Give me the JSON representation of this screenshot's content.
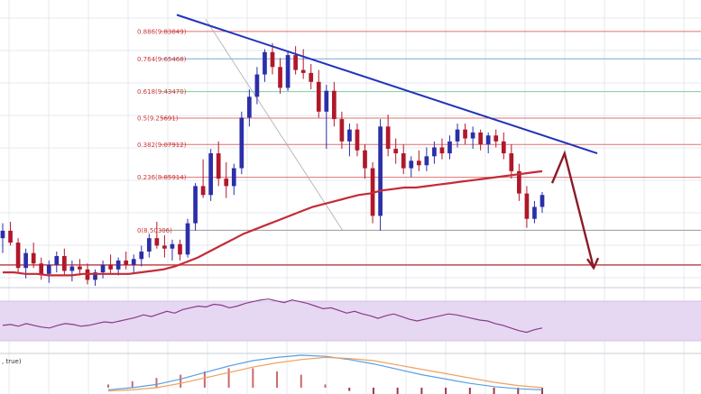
{
  "chart_data": {
    "type": "candlestick",
    "price_range": [
      8.13,
      10.05
    ],
    "fib_levels": [
      {
        "ratio": "0.886",
        "price": 9.83849,
        "label": "0.886(9.83849)",
        "color": "#e07070"
      },
      {
        "ratio": "0.764",
        "price": 9.65468,
        "label": "0.764(9.65468)",
        "color": "#7aa7d6"
      },
      {
        "ratio": "0.618",
        "price": 9.4347,
        "label": "0.618(9.43470)",
        "color": "#7ccf9f"
      },
      {
        "ratio": "0.5",
        "price": 9.25691,
        "label": "0.5(9.25691)",
        "color": "#e07070"
      },
      {
        "ratio": "0.382",
        "price": 9.07912,
        "label": "0.382(9.07912)",
        "color": "#e07070"
      },
      {
        "ratio": "0.236",
        "price": 8.85914,
        "label": "0.236(8.85914)",
        "color": "#e07070"
      },
      {
        "ratio": "0",
        "price": 8.50306,
        "label": "0(8.50306)",
        "color": "#999999"
      }
    ],
    "support_price": 8.27,
    "candles": [
      [
        8.45,
        8.55,
        8.35,
        8.5
      ],
      [
        8.5,
        8.56,
        8.4,
        8.42
      ],
      [
        8.42,
        8.45,
        8.22,
        8.25
      ],
      [
        8.25,
        8.38,
        8.18,
        8.35
      ],
      [
        8.35,
        8.42,
        8.25,
        8.28
      ],
      [
        8.28,
        8.32,
        8.17,
        8.21
      ],
      [
        8.21,
        8.3,
        8.15,
        8.27
      ],
      [
        8.27,
        8.36,
        8.22,
        8.33
      ],
      [
        8.33,
        8.38,
        8.2,
        8.23
      ],
      [
        8.23,
        8.3,
        8.16,
        8.26
      ],
      [
        8.26,
        8.31,
        8.2,
        8.24
      ],
      [
        8.24,
        8.28,
        8.14,
        8.17
      ],
      [
        8.17,
        8.24,
        8.13,
        8.22
      ],
      [
        8.22,
        8.3,
        8.18,
        8.27
      ],
      [
        8.27,
        8.34,
        8.21,
        8.24
      ],
      [
        8.24,
        8.32,
        8.2,
        8.3
      ],
      [
        8.3,
        8.36,
        8.24,
        8.27
      ],
      [
        8.27,
        8.34,
        8.22,
        8.31
      ],
      [
        8.31,
        8.4,
        8.26,
        8.36
      ],
      [
        8.36,
        8.48,
        8.32,
        8.45
      ],
      [
        8.45,
        8.56,
        8.38,
        8.4
      ],
      [
        8.4,
        8.47,
        8.32,
        8.38
      ],
      [
        8.38,
        8.44,
        8.3,
        8.41
      ],
      [
        8.41,
        8.44,
        8.3,
        8.34
      ],
      [
        8.34,
        8.58,
        8.32,
        8.55
      ],
      [
        8.55,
        8.82,
        8.5,
        8.8
      ],
      [
        8.8,
        8.98,
        8.72,
        8.74
      ],
      [
        8.74,
        9.05,
        8.7,
        9.02
      ],
      [
        9.02,
        9.1,
        8.8,
        8.85
      ],
      [
        8.85,
        8.96,
        8.72,
        8.8
      ],
      [
        8.8,
        8.95,
        8.74,
        8.92
      ],
      [
        8.92,
        9.3,
        8.88,
        9.26
      ],
      [
        9.26,
        9.45,
        9.2,
        9.4
      ],
      [
        9.4,
        9.6,
        9.35,
        9.55
      ],
      [
        9.55,
        9.72,
        9.5,
        9.7
      ],
      [
        9.7,
        9.76,
        9.55,
        9.6
      ],
      [
        9.6,
        9.66,
        9.42,
        9.46
      ],
      [
        9.46,
        9.7,
        9.44,
        9.68
      ],
      [
        9.68,
        9.74,
        9.55,
        9.58
      ],
      [
        9.58,
        9.72,
        9.52,
        9.56
      ],
      [
        9.56,
        9.62,
        9.45,
        9.5
      ],
      [
        9.5,
        9.58,
        9.26,
        9.3
      ],
      [
        9.3,
        9.48,
        9.05,
        9.44
      ],
      [
        9.44,
        9.5,
        9.2,
        9.25
      ],
      [
        9.25,
        9.3,
        9.05,
        9.1
      ],
      [
        9.1,
        9.22,
        9.0,
        9.18
      ],
      [
        9.18,
        9.22,
        9.0,
        9.04
      ],
      [
        9.04,
        9.08,
        8.85,
        8.92
      ],
      [
        8.92,
        8.96,
        8.55,
        8.6
      ],
      [
        8.6,
        9.25,
        8.5,
        9.2
      ],
      [
        9.2,
        9.28,
        9.0,
        9.05
      ],
      [
        9.05,
        9.12,
        8.95,
        9.02
      ],
      [
        9.02,
        9.08,
        8.88,
        8.92
      ],
      [
        8.92,
        9.0,
        8.86,
        8.97
      ],
      [
        8.97,
        9.04,
        8.9,
        8.94
      ],
      [
        8.94,
        9.06,
        8.9,
        9.0
      ],
      [
        9.0,
        9.1,
        8.95,
        9.06
      ],
      [
        9.06,
        9.12,
        8.98,
        9.02
      ],
      [
        9.02,
        9.14,
        8.98,
        9.1
      ],
      [
        9.1,
        9.22,
        9.06,
        9.18
      ],
      [
        9.18,
        9.22,
        9.08,
        9.12
      ],
      [
        9.12,
        9.2,
        9.05,
        9.16
      ],
      [
        9.16,
        9.18,
        9.04,
        9.08
      ],
      [
        9.08,
        9.16,
        9.02,
        9.14
      ],
      [
        9.14,
        9.18,
        9.06,
        9.1
      ],
      [
        9.1,
        9.16,
        8.98,
        9.02
      ],
      [
        9.02,
        9.08,
        8.85,
        8.9
      ],
      [
        8.9,
        8.95,
        8.7,
        8.75
      ],
      [
        8.75,
        8.8,
        8.52,
        8.58
      ],
      [
        8.58,
        8.7,
        8.55,
        8.66
      ],
      [
        8.66,
        8.76,
        8.62,
        8.74
      ]
    ],
    "moving_average": [
      8.22,
      8.22,
      8.21,
      8.21,
      8.2,
      8.2,
      8.2,
      8.21,
      8.21,
      8.21,
      8.21,
      8.21,
      8.22,
      8.23,
      8.24,
      8.26,
      8.29,
      8.32,
      8.36,
      8.4,
      8.44,
      8.48,
      8.51,
      8.54,
      8.57,
      8.6,
      8.63,
      8.66,
      8.68,
      8.7,
      8.72,
      8.74,
      8.75,
      8.77,
      8.78,
      8.79,
      8.79,
      8.8,
      8.81,
      8.82,
      8.83,
      8.84,
      8.85,
      8.86,
      8.87,
      8.88,
      8.89,
      8.9
    ],
    "trendline": [
      [
        9.95,
        0
      ],
      [
        9.02,
        1
      ]
    ],
    "projection": [
      [
        8.82,
        0
      ],
      [
        9.02,
        0.3
      ],
      [
        8.25,
        1
      ]
    ],
    "rsi": [
      50,
      51,
      49,
      52,
      50,
      48,
      47,
      50,
      52,
      51,
      49,
      50,
      52,
      54,
      53,
      55,
      57,
      59,
      62,
      60,
      63,
      66,
      64,
      68,
      70,
      72,
      71,
      74,
      73,
      70,
      72,
      75,
      77,
      79,
      80,
      78,
      76,
      79,
      77,
      75,
      72,
      69,
      70,
      67,
      64,
      66,
      63,
      61,
      58,
      61,
      63,
      60,
      57,
      55,
      57,
      59,
      61,
      63,
      62,
      60,
      58,
      56,
      55,
      52,
      50,
      47,
      44,
      42,
      45,
      47
    ],
    "macd": {
      "line": [
        -0.02,
        0.0,
        0.03,
        0.08,
        0.14,
        0.2,
        0.25,
        0.28,
        0.3,
        0.29,
        0.26,
        0.22,
        0.17,
        0.12,
        0.08,
        0.04,
        0.01,
        -0.01,
        -0.02
      ],
      "signal": [
        -0.03,
        -0.02,
        0.0,
        0.04,
        0.09,
        0.14,
        0.19,
        0.23,
        0.26,
        0.28,
        0.27,
        0.25,
        0.21,
        0.17,
        0.13,
        0.09,
        0.05,
        0.02,
        0.0
      ],
      "label": ", true)"
    }
  },
  "colors": {
    "candle_up": "#2b2fa8",
    "candle_down": "#b0182a",
    "ma": "#c42b36",
    "trendline": "#2233bb",
    "projection": "#8a1a28",
    "support": "#c0494f",
    "rsi_line": "#8a3a8a",
    "rsi_band": "#e6d8f3",
    "macd_line": "#5aa0e0",
    "macd_signal": "#f0a060",
    "grid": "#e5e8ef"
  }
}
